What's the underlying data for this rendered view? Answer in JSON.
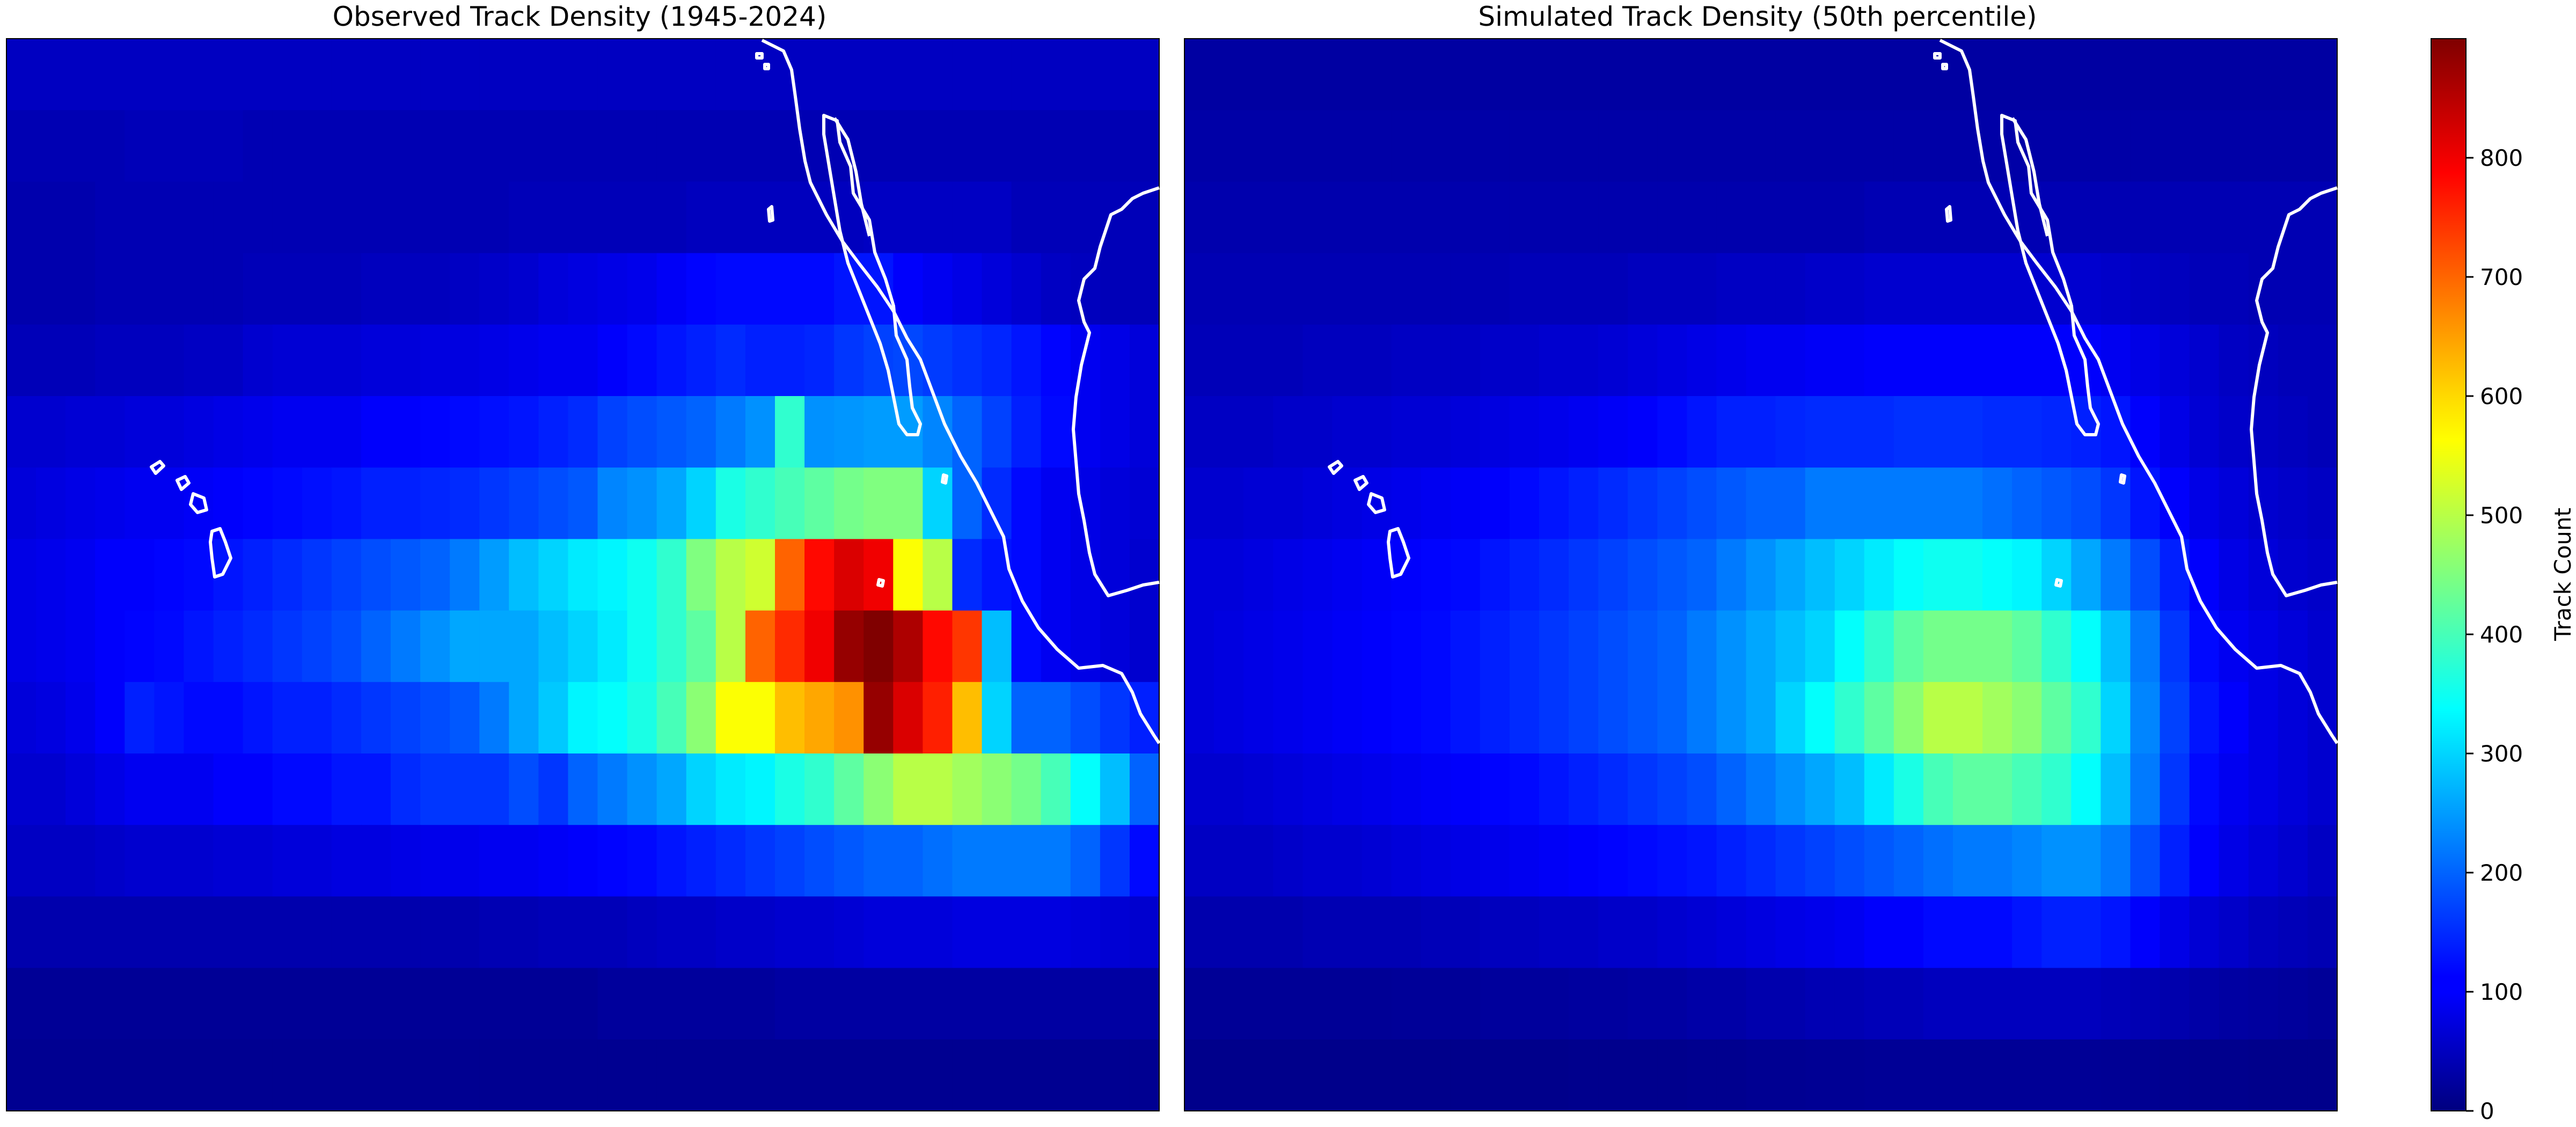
{
  "figure": {
    "colorbar": {
      "label": "Track Count",
      "range": [
        0,
        900
      ],
      "colormap": "jet",
      "ticks": [
        0,
        100,
        200,
        300,
        400,
        500,
        600,
        700,
        800
      ]
    },
    "coastline_color": "#ffffff"
  },
  "chart_data": [
    {
      "type": "heatmap",
      "title": "Observed Track Density (1945-2024)",
      "rows": 15,
      "cols": 39,
      "value_range": [
        0,
        900
      ],
      "values": [
        [
          58,
          58,
          58,
          58,
          58,
          58,
          58,
          58,
          58,
          58,
          58,
          58,
          58,
          58,
          58,
          58,
          58,
          58,
          58,
          58,
          58,
          58,
          58,
          58,
          58,
          58,
          58,
          58,
          58,
          58,
          58,
          58,
          58,
          58,
          58,
          58,
          58,
          58,
          58
        ],
        [
          45,
          45,
          45,
          45,
          50,
          50,
          50,
          50,
          45,
          45,
          45,
          45,
          45,
          45,
          45,
          45,
          45,
          45,
          45,
          45,
          45,
          45,
          45,
          45,
          45,
          45,
          45,
          45,
          45,
          45,
          45,
          45,
          45,
          45,
          45,
          45,
          45,
          45,
          45
        ],
        [
          40,
          40,
          40,
          45,
          45,
          45,
          45,
          45,
          45,
          45,
          45,
          45,
          45,
          45,
          45,
          45,
          45,
          50,
          50,
          50,
          50,
          50,
          50,
          55,
          55,
          55,
          55,
          55,
          55,
          60,
          60,
          60,
          60,
          60,
          50,
          50,
          50,
          50,
          50
        ],
        [
          40,
          40,
          40,
          45,
          45,
          45,
          45,
          45,
          50,
          50,
          50,
          50,
          55,
          55,
          55,
          60,
          65,
          70,
          80,
          85,
          90,
          95,
          105,
          115,
          120,
          120,
          120,
          120,
          130,
          130,
          110,
          100,
          90,
          80,
          70,
          60,
          55,
          50,
          50
        ],
        [
          50,
          50,
          50,
          55,
          55,
          55,
          60,
          60,
          70,
          75,
          75,
          75,
          80,
          80,
          85,
          85,
          90,
          95,
          100,
          100,
          110,
          120,
          130,
          140,
          150,
          140,
          140,
          145,
          160,
          170,
          175,
          165,
          155,
          145,
          130,
          115,
          100,
          90,
          80
        ],
        [
          70,
          70,
          75,
          75,
          80,
          80,
          85,
          90,
          95,
          100,
          100,
          100,
          110,
          110,
          115,
          120,
          125,
          130,
          140,
          150,
          170,
          180,
          190,
          200,
          220,
          240,
          380,
          240,
          245,
          250,
          250,
          230,
          200,
          170,
          140,
          120,
          100,
          90,
          80
        ],
        [
          80,
          85,
          90,
          95,
          100,
          100,
          105,
          110,
          115,
          120,
          125,
          130,
          140,
          140,
          145,
          150,
          160,
          170,
          180,
          190,
          230,
          240,
          260,
          300,
          360,
          380,
          400,
          420,
          440,
          450,
          450,
          300,
          200,
          150,
          120,
          100,
          90,
          80,
          75
        ],
        [
          90,
          95,
          100,
          110,
          110,
          115,
          120,
          130,
          140,
          150,
          160,
          170,
          180,
          190,
          200,
          220,
          250,
          280,
          300,
          320,
          330,
          350,
          380,
          450,
          500,
          520,
          700,
          780,
          820,
          800,
          560,
          500,
          150,
          130,
          120,
          100,
          90,
          80,
          70
        ],
        [
          90,
          95,
          100,
          110,
          115,
          120,
          130,
          140,
          150,
          160,
          170,
          180,
          200,
          220,
          240,
          260,
          260,
          260,
          280,
          300,
          320,
          350,
          380,
          420,
          500,
          700,
          750,
          800,
          880,
          900,
          860,
          780,
          740,
          280,
          120,
          100,
          90,
          80,
          70
        ],
        [
          80,
          85,
          95,
          110,
          140,
          130,
          120,
          120,
          130,
          140,
          140,
          150,
          160,
          170,
          180,
          190,
          220,
          260,
          290,
          330,
          340,
          360,
          400,
          460,
          560,
          560,
          620,
          640,
          660,
          880,
          820,
          760,
          620,
          300,
          200,
          200,
          180,
          160,
          140
        ],
        [
          70,
          70,
          80,
          90,
          100,
          100,
          100,
          110,
          110,
          120,
          120,
          130,
          130,
          150,
          160,
          160,
          160,
          180,
          160,
          200,
          220,
          240,
          260,
          300,
          320,
          330,
          360,
          380,
          420,
          460,
          500,
          500,
          480,
          460,
          440,
          400,
          340,
          280,
          200
        ],
        [
          60,
          60,
          60,
          65,
          70,
          70,
          70,
          75,
          75,
          80,
          80,
          85,
          85,
          90,
          95,
          95,
          100,
          100,
          105,
          110,
          115,
          120,
          130,
          140,
          150,
          160,
          170,
          180,
          190,
          200,
          200,
          210,
          220,
          220,
          220,
          220,
          200,
          160,
          120
        ],
        [
          40,
          40,
          40,
          40,
          40,
          40,
          40,
          40,
          40,
          40,
          40,
          40,
          40,
          40,
          40,
          40,
          45,
          45,
          50,
          50,
          50,
          55,
          60,
          60,
          65,
          65,
          70,
          70,
          75,
          80,
          80,
          80,
          85,
          85,
          85,
          85,
          80,
          75,
          70
        ],
        [
          20,
          20,
          20,
          20,
          20,
          20,
          20,
          20,
          20,
          20,
          20,
          20,
          20,
          20,
          20,
          20,
          20,
          20,
          20,
          20,
          25,
          25,
          25,
          25,
          25,
          25,
          30,
          30,
          30,
          30,
          30,
          30,
          30,
          30,
          30,
          30,
          30,
          30,
          30
        ],
        [
          15,
          15,
          15,
          15,
          15,
          15,
          15,
          15,
          15,
          15,
          15,
          15,
          15,
          15,
          15,
          15,
          15,
          15,
          15,
          15,
          15,
          15,
          15,
          15,
          15,
          15,
          15,
          15,
          15,
          15,
          15,
          15,
          15,
          15,
          15,
          15,
          15,
          15,
          15
        ]
      ]
    },
    {
      "type": "heatmap",
      "title": "Simulated Track Density (50th percentile)",
      "rows": 15,
      "cols": 39,
      "value_range": [
        0,
        900
      ],
      "values": [
        [
          30,
          30,
          30,
          30,
          30,
          30,
          30,
          30,
          30,
          30,
          30,
          30,
          30,
          30,
          30,
          30,
          30,
          30,
          30,
          30,
          30,
          30,
          30,
          30,
          30,
          30,
          30,
          30,
          30,
          30,
          30,
          30,
          30,
          30,
          30,
          30,
          30,
          30,
          30
        ],
        [
          35,
          35,
          35,
          35,
          35,
          35,
          35,
          35,
          35,
          35,
          35,
          35,
          35,
          35,
          35,
          35,
          35,
          35,
          35,
          35,
          35,
          35,
          35,
          35,
          35,
          35,
          35,
          35,
          35,
          35,
          35,
          35,
          35,
          35,
          35,
          35,
          35,
          35,
          35
        ],
        [
          40,
          40,
          40,
          40,
          40,
          40,
          40,
          40,
          40,
          40,
          40,
          40,
          40,
          40,
          40,
          40,
          40,
          40,
          40,
          40,
          40,
          40,
          40,
          45,
          45,
          45,
          45,
          45,
          45,
          45,
          45,
          45,
          45,
          45,
          45,
          45,
          45,
          45,
          45
        ],
        [
          45,
          45,
          45,
          45,
          45,
          45,
          45,
          45,
          45,
          45,
          45,
          50,
          50,
          50,
          50,
          55,
          55,
          55,
          60,
          60,
          60,
          65,
          65,
          70,
          70,
          70,
          70,
          70,
          70,
          70,
          70,
          65,
          60,
          55,
          50,
          50,
          45,
          45,
          45
        ],
        [
          50,
          50,
          50,
          50,
          55,
          55,
          55,
          60,
          60,
          60,
          65,
          65,
          70,
          70,
          75,
          80,
          85,
          90,
          95,
          100,
          100,
          105,
          105,
          110,
          110,
          110,
          110,
          110,
          110,
          110,
          110,
          100,
          90,
          80,
          70,
          60,
          55,
          50,
          50
        ],
        [
          60,
          60,
          60,
          65,
          65,
          70,
          70,
          75,
          75,
          80,
          85,
          90,
          95,
          100,
          105,
          110,
          120,
          130,
          140,
          140,
          145,
          150,
          150,
          150,
          155,
          155,
          155,
          150,
          150,
          145,
          140,
          130,
          110,
          90,
          75,
          65,
          60,
          55,
          50
        ],
        [
          70,
          70,
          75,
          75,
          80,
          85,
          90,
          95,
          100,
          105,
          110,
          120,
          130,
          140,
          150,
          160,
          170,
          180,
          190,
          200,
          200,
          220,
          220,
          220,
          220,
          220,
          220,
          210,
          200,
          190,
          180,
          160,
          130,
          110,
          90,
          80,
          70,
          65,
          60
        ],
        [
          80,
          80,
          85,
          90,
          95,
          100,
          105,
          110,
          115,
          120,
          130,
          140,
          150,
          160,
          170,
          180,
          190,
          200,
          220,
          240,
          260,
          280,
          300,
          320,
          340,
          350,
          350,
          340,
          330,
          300,
          260,
          220,
          180,
          140,
          110,
          90,
          80,
          70,
          65
        ],
        [
          80,
          85,
          90,
          95,
          100,
          105,
          110,
          115,
          120,
          130,
          140,
          150,
          160,
          170,
          180,
          190,
          200,
          220,
          240,
          260,
          280,
          300,
          340,
          380,
          420,
          440,
          440,
          440,
          420,
          380,
          340,
          280,
          220,
          160,
          120,
          100,
          90,
          80,
          70
        ],
        [
          80,
          85,
          90,
          95,
          100,
          105,
          110,
          115,
          120,
          130,
          140,
          150,
          160,
          170,
          180,
          190,
          200,
          220,
          240,
          260,
          300,
          340,
          380,
          420,
          460,
          500,
          500,
          480,
          460,
          420,
          380,
          300,
          230,
          170,
          130,
          110,
          90,
          80,
          70
        ],
        [
          70,
          70,
          75,
          80,
          85,
          90,
          95,
          100,
          105,
          110,
          115,
          120,
          130,
          140,
          150,
          160,
          170,
          180,
          200,
          220,
          240,
          260,
          280,
          320,
          360,
          400,
          420,
          420,
          400,
          380,
          340,
          280,
          220,
          160,
          120,
          100,
          90,
          80,
          70
        ],
        [
          60,
          60,
          60,
          65,
          70,
          70,
          75,
          80,
          85,
          90,
          95,
          100,
          105,
          110,
          115,
          120,
          125,
          130,
          140,
          150,
          160,
          170,
          180,
          190,
          200,
          210,
          220,
          220,
          230,
          240,
          240,
          220,
          180,
          140,
          110,
          90,
          80,
          70,
          60
        ],
        [
          40,
          40,
          40,
          40,
          45,
          45,
          45,
          45,
          50,
          50,
          55,
          55,
          60,
          60,
          65,
          65,
          70,
          75,
          80,
          85,
          90,
          95,
          100,
          110,
          110,
          120,
          120,
          120,
          130,
          140,
          140,
          130,
          110,
          90,
          75,
          65,
          55,
          50,
          45
        ],
        [
          20,
          20,
          20,
          20,
          20,
          20,
          20,
          22,
          22,
          22,
          25,
          25,
          25,
          28,
          28,
          30,
          30,
          35,
          35,
          40,
          40,
          45,
          45,
          50,
          50,
          55,
          55,
          55,
          55,
          55,
          55,
          50,
          45,
          40,
          35,
          30,
          28,
          25,
          22
        ],
        [
          10,
          10,
          10,
          10,
          10,
          10,
          10,
          10,
          10,
          10,
          10,
          10,
          10,
          12,
          12,
          12,
          12,
          14,
          14,
          16,
          16,
          18,
          18,
          20,
          20,
          20,
          20,
          20,
          20,
          20,
          20,
          18,
          16,
          14,
          12,
          12,
          10,
          10,
          10
        ]
      ]
    }
  ]
}
